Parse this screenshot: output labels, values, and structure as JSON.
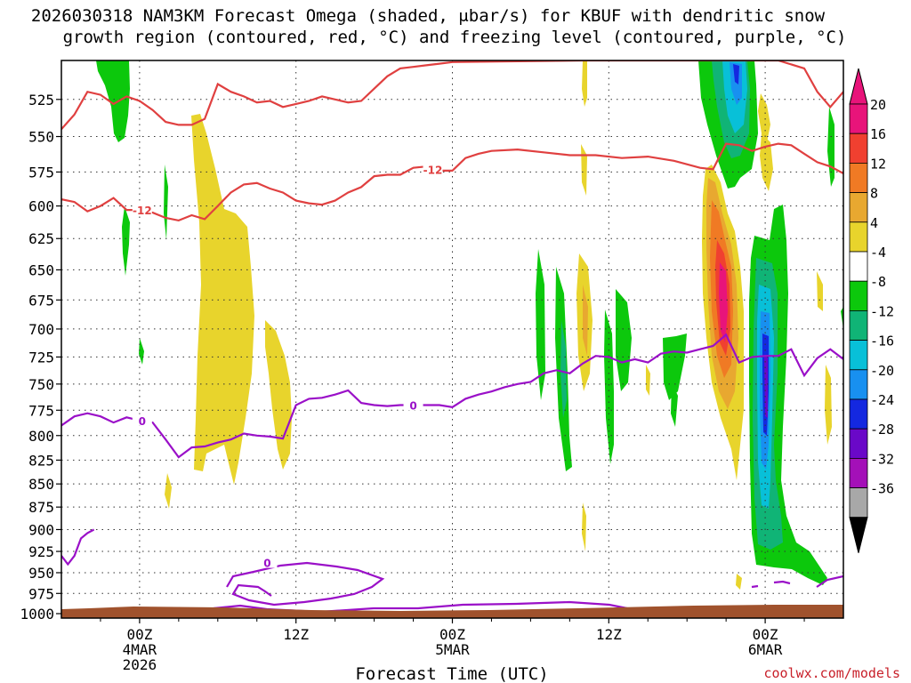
{
  "chart_data": {
    "type": "heatmap",
    "title_line1": "2026030318 NAM3KM Forecast Omega (shaded, μbar/s) for KBUF with dendritic snow",
    "title_line2": "growth region (contoured, red, °C) and freezing level (contoured, purple, °C)",
    "xlabel": "Forecast Time (UTC)",
    "credit": "coolwx.com/models",
    "x_range_hours": [
      0,
      60
    ],
    "y_range_mb": [
      1000,
      500
    ],
    "y_ticks": [
      "525",
      "550",
      "575",
      "600",
      "625",
      "650",
      "675",
      "700",
      "725",
      "750",
      "775",
      "800",
      "825",
      "850",
      "875",
      "900",
      "925",
      "950",
      "975",
      "1000"
    ],
    "x_ticks": [
      {
        "hour": 6,
        "label": "00Z",
        "sub1": "4MAR",
        "sub2": "2026"
      },
      {
        "hour": 18,
        "label": "12Z",
        "sub1": "",
        "sub2": ""
      },
      {
        "hour": 30,
        "label": "00Z",
        "sub1": "5MAR",
        "sub2": ""
      },
      {
        "hour": 42,
        "label": "12Z",
        "sub1": "",
        "sub2": ""
      },
      {
        "hour": 54,
        "label": "00Z",
        "sub1": "6MAR",
        "sub2": ""
      }
    ],
    "colorbar": {
      "labels": [
        "20",
        "16",
        "12",
        "8",
        "4",
        "-4",
        "-8",
        "-12",
        "-16",
        "-20",
        "-24",
        "-28",
        "-32",
        "-36"
      ],
      "colors": [
        "#e8147a",
        "#f04030",
        "#f07a24",
        "#e8a830",
        "#e8d42c",
        "#ffffff",
        "#0cc80c",
        "#10b476",
        "#08c0d8",
        "#1890f0",
        "#1428e0",
        "#6a08c8",
        "#a410b8",
        "#a8a8a8"
      ]
    },
    "contour_labels": [
      {
        "text": "-12",
        "color": "#e04040"
      },
      {
        "text": "-12",
        "color": "#e04040"
      },
      {
        "text": "0",
        "color": "#9a10c8"
      },
      {
        "text": "0",
        "color": "#9a10c8"
      },
      {
        "text": "0",
        "color": "#9a10c8"
      }
    ],
    "red_contour_12c_upper": [
      [
        0,
        545
      ],
      [
        1,
        535
      ],
      [
        2,
        520
      ],
      [
        3,
        522
      ],
      [
        4,
        528
      ],
      [
        5,
        523
      ],
      [
        6,
        526
      ],
      [
        7,
        532
      ],
      [
        8,
        540
      ],
      [
        9,
        542
      ],
      [
        10,
        542
      ],
      [
        11,
        538
      ],
      [
        12,
        515
      ],
      [
        13,
        520
      ],
      [
        14,
        523
      ],
      [
        15,
        527
      ],
      [
        16,
        526
      ],
      [
        17,
        530
      ],
      [
        18,
        528
      ],
      [
        19,
        526
      ],
      [
        20,
        523
      ],
      [
        21,
        525
      ],
      [
        22,
        527
      ],
      [
        23,
        526
      ],
      [
        24,
        518
      ],
      [
        25,
        510
      ],
      [
        26,
        505
      ],
      [
        27,
        504
      ],
      [
        28,
        503
      ],
      [
        29,
        502
      ],
      [
        30,
        501
      ],
      [
        40,
        500
      ],
      [
        55,
        500
      ],
      [
        57,
        505
      ],
      [
        58,
        520
      ],
      [
        59,
        530
      ],
      [
        60,
        520
      ]
    ],
    "red_contour_12c_lower": [
      [
        0,
        595
      ],
      [
        1,
        597
      ],
      [
        2,
        604
      ],
      [
        3,
        600
      ],
      [
        4,
        594
      ],
      [
        5,
        603
      ],
      [
        6,
        603
      ],
      [
        7,
        605
      ],
      [
        8,
        609
      ],
      [
        9,
        611
      ],
      [
        10,
        607
      ],
      [
        11,
        610
      ],
      [
        12,
        600
      ],
      [
        13,
        590
      ],
      [
        14,
        584
      ],
      [
        15,
        583
      ],
      [
        16,
        587
      ],
      [
        17,
        590
      ],
      [
        18,
        596
      ],
      [
        19,
        598
      ],
      [
        20,
        599
      ],
      [
        21,
        596
      ],
      [
        22,
        590
      ],
      [
        23,
        586
      ],
      [
        24,
        578
      ],
      [
        25,
        577
      ],
      [
        26,
        577
      ],
      [
        27,
        572
      ],
      [
        28,
        571
      ],
      [
        29,
        574
      ],
      [
        30,
        574
      ],
      [
        31,
        565
      ],
      [
        32,
        562
      ],
      [
        33,
        560
      ],
      [
        35,
        559
      ],
      [
        37,
        561
      ],
      [
        39,
        563
      ],
      [
        41,
        563
      ],
      [
        43,
        565
      ],
      [
        45,
        564
      ],
      [
        47,
        567
      ],
      [
        49,
        572
      ],
      [
        50,
        573
      ],
      [
        51,
        555
      ],
      [
        52,
        556
      ],
      [
        53,
        560
      ],
      [
        54,
        557
      ],
      [
        55,
        555
      ],
      [
        56,
        556
      ],
      [
        57,
        562
      ],
      [
        58,
        568
      ],
      [
        59,
        571
      ],
      [
        60,
        576
      ]
    ],
    "purple_contour_0c_upper": [
      [
        0,
        790
      ],
      [
        1,
        781
      ],
      [
        2,
        778
      ],
      [
        3,
        781
      ],
      [
        4,
        787
      ],
      [
        5,
        782
      ],
      [
        6,
        785
      ],
      [
        7,
        787
      ],
      [
        8,
        804
      ],
      [
        9,
        822
      ],
      [
        10,
        812
      ],
      [
        11,
        811
      ],
      [
        12,
        807
      ],
      [
        13,
        804
      ],
      [
        14,
        798
      ],
      [
        15,
        800
      ],
      [
        16,
        801
      ],
      [
        17,
        803
      ],
      [
        18,
        770
      ],
      [
        19,
        764
      ],
      [
        20,
        763
      ],
      [
        21,
        760
      ],
      [
        22,
        756
      ],
      [
        23,
        768
      ],
      [
        24,
        770
      ],
      [
        25,
        771
      ],
      [
        26,
        770
      ],
      [
        27,
        770
      ],
      [
        28,
        770
      ],
      [
        29,
        770
      ],
      [
        30,
        772
      ],
      [
        31,
        764
      ],
      [
        32,
        760
      ],
      [
        33,
        757
      ],
      [
        34,
        753
      ],
      [
        35,
        750
      ],
      [
        36,
        748
      ],
      [
        37,
        740
      ],
      [
        38,
        737
      ],
      [
        39,
        740
      ],
      [
        40,
        731
      ],
      [
        41,
        724
      ],
      [
        42,
        725
      ],
      [
        43,
        730
      ],
      [
        44,
        727
      ],
      [
        45,
        730
      ],
      [
        46,
        722
      ],
      [
        47,
        720
      ],
      [
        48,
        721
      ],
      [
        49,
        718
      ],
      [
        50,
        715
      ],
      [
        51,
        705
      ],
      [
        52,
        730
      ],
      [
        53,
        725
      ],
      [
        54,
        724
      ],
      [
        55,
        724
      ],
      [
        56,
        718
      ],
      [
        57,
        742
      ],
      [
        58,
        726
      ],
      [
        59,
        718
      ],
      [
        60,
        727
      ]
    ],
    "purple_contour_0c_lower": [
      [
        0,
        930
      ],
      [
        0.5,
        940
      ],
      [
        1,
        930
      ],
      [
        1.5,
        910
      ],
      [
        2,
        904
      ],
      [
        2.5,
        900
      ]
    ]
  }
}
